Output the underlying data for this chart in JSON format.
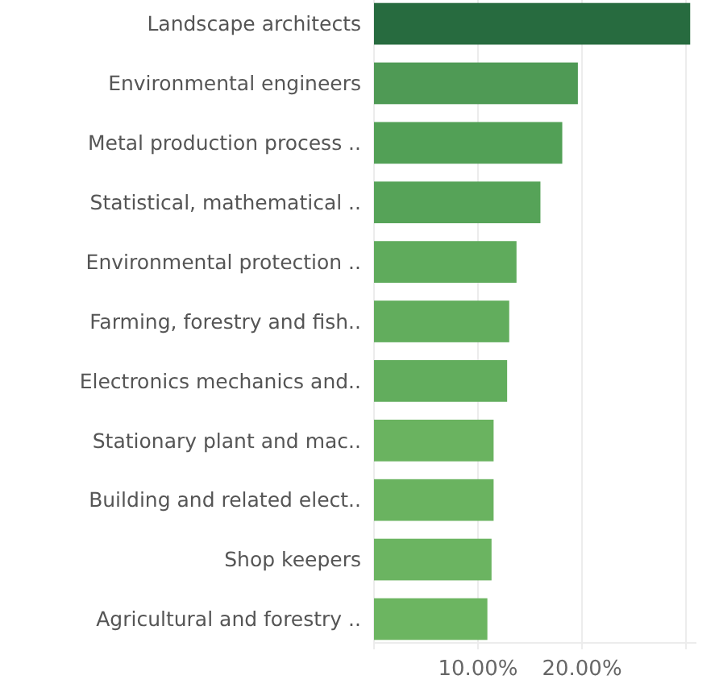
{
  "chart_data": {
    "type": "bar",
    "orientation": "horizontal",
    "categories": [
      "Landscape architects",
      "Environmental engineers",
      "Metal production process ..",
      "Statistical, mathematical ..",
      "Environmental protection ..",
      "Farming, forestry and fish..",
      "Electronics mechanics and..",
      "Stationary plant and mac..",
      "Building and related elect..",
      "Shop keepers",
      "Agricultural and forestry .."
    ],
    "values": [
      30.4,
      19.6,
      18.1,
      16.0,
      13.7,
      13.0,
      12.8,
      11.5,
      11.5,
      11.3,
      10.9
    ],
    "colors": [
      "#276b3f",
      "#4f9a55",
      "#52a056",
      "#56a358",
      "#5fab5c",
      "#62ad5d",
      "#62ad5d",
      "#6ab360",
      "#6ab360",
      "#6bb461",
      "#6cb561"
    ],
    "xlim": [
      0,
      31
    ],
    "xticks": [
      {
        "value": 0,
        "label": null
      },
      {
        "value": 10,
        "label": "10.00%"
      },
      {
        "value": 20,
        "label": "20.00%"
      },
      {
        "value": 30,
        "label": null
      }
    ],
    "grid": "x"
  }
}
